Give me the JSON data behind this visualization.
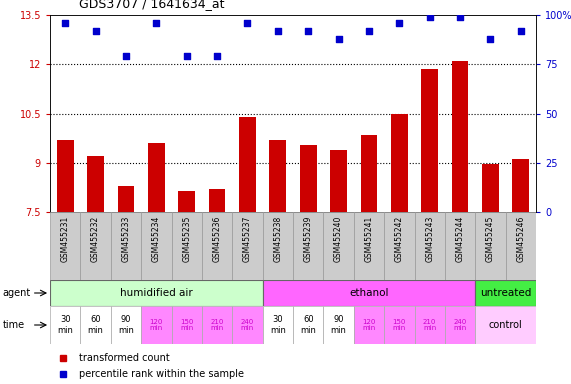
{
  "title": "GDS3707 / 1641634_at",
  "samples": [
    "GSM455231",
    "GSM455232",
    "GSM455233",
    "GSM455234",
    "GSM455235",
    "GSM455236",
    "GSM455237",
    "GSM455238",
    "GSM455239",
    "GSM455240",
    "GSM455241",
    "GSM455242",
    "GSM455243",
    "GSM455244",
    "GSM455245",
    "GSM455246"
  ],
  "bar_values": [
    9.7,
    9.2,
    8.3,
    9.6,
    8.15,
    8.2,
    10.4,
    9.7,
    9.55,
    9.4,
    9.85,
    10.5,
    11.85,
    12.1,
    8.95,
    9.1
  ],
  "dot_values": [
    96,
    92,
    79,
    96,
    79,
    79,
    96,
    92,
    92,
    88,
    92,
    96,
    99,
    99,
    88,
    92
  ],
  "bar_color": "#cc0000",
  "dot_color": "#0000cc",
  "ylim_left": [
    7.5,
    13.5
  ],
  "ylim_right": [
    0,
    100
  ],
  "yticks_left": [
    7.5,
    9.0,
    10.5,
    12.0,
    13.5
  ],
  "yticks_right": [
    0,
    25,
    50,
    75,
    100
  ],
  "ytick_labels_left": [
    "7.5",
    "9",
    "10.5",
    "12",
    "13.5"
  ],
  "ytick_labels_right": [
    "0",
    "25",
    "50",
    "75",
    "100%"
  ],
  "dotted_lines": [
    9.0,
    10.5,
    12.0
  ],
  "agent_groups": [
    {
      "label": "humidified air",
      "start": 0,
      "end": 7,
      "color": "#ccffcc"
    },
    {
      "label": "ethanol",
      "start": 7,
      "end": 14,
      "color": "#ff66ff"
    },
    {
      "label": "untreated",
      "start": 14,
      "end": 16,
      "color": "#44ee44"
    }
  ],
  "time_labels_14": [
    "30\nmin",
    "60\nmin",
    "90\nmin",
    "120\nmin",
    "150\nmin",
    "210\nmin",
    "240\nmin",
    "30\nmin",
    "60\nmin",
    "90\nmin",
    "120\nmin",
    "150\nmin",
    "210\nmin",
    "240\nmin"
  ],
  "time_colors_14": [
    "#ffffff",
    "#ffffff",
    "#ffffff",
    "#ff88ff",
    "#ff88ff",
    "#ff88ff",
    "#ff88ff",
    "#ffffff",
    "#ffffff",
    "#ffffff",
    "#ff88ff",
    "#ff88ff",
    "#ff88ff",
    "#ff88ff"
  ],
  "time_fontcolors_14": [
    "#000000",
    "#000000",
    "#000000",
    "#cc00cc",
    "#cc00cc",
    "#cc00cc",
    "#cc00cc",
    "#000000",
    "#000000",
    "#000000",
    "#cc00cc",
    "#cc00cc",
    "#cc00cc",
    "#cc00cc"
  ],
  "control_label": "control",
  "control_bg": "#ffccff",
  "legend_bar": "transformed count",
  "legend_dot": "percentile rank within the sample",
  "bg_color": "#ffffff",
  "plot_bg": "#ffffff",
  "sample_bg": "#cccccc"
}
